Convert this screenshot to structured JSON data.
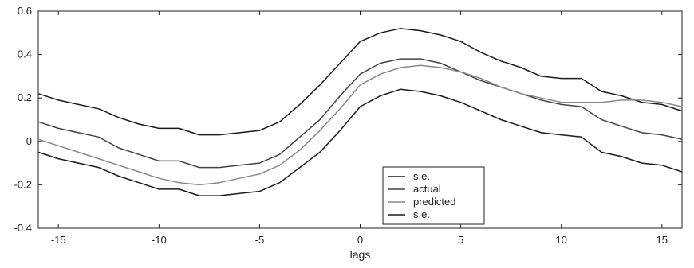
{
  "chart_data": {
    "type": "line",
    "xlabel": "lags",
    "ylabel": "",
    "xlim": [
      -16,
      16
    ],
    "ylim": [
      -0.4,
      0.6
    ],
    "xticks": [
      -15,
      -10,
      -5,
      0,
      5,
      10,
      15
    ],
    "yticks": [
      -0.4,
      -0.2,
      0,
      0.2,
      0.4,
      0.6
    ],
    "ytick_labels": [
      "-0.4",
      "-0.2",
      "0",
      "0.2",
      "0.4",
      "0.6"
    ],
    "grid": false,
    "legend": "bottom-center",
    "x": [
      -16,
      -15,
      -14,
      -13,
      -12,
      -11,
      -10,
      -9,
      -8,
      -7,
      -6,
      -5,
      -4,
      -3,
      -2,
      -1,
      0,
      1,
      2,
      3,
      4,
      5,
      6,
      7,
      8,
      9,
      10,
      11,
      12,
      13,
      14,
      15,
      16
    ],
    "series": [
      {
        "name": "s.e.",
        "color": "#1a1a1a",
        "values": [
          0.22,
          0.19,
          0.17,
          0.15,
          0.11,
          0.08,
          0.06,
          0.06,
          0.03,
          0.03,
          0.04,
          0.05,
          0.09,
          0.17,
          0.26,
          0.36,
          0.46,
          0.5,
          0.52,
          0.51,
          0.49,
          0.46,
          0.41,
          0.37,
          0.34,
          0.3,
          0.29,
          0.29,
          0.23,
          0.21,
          0.18,
          0.17,
          0.14
        ]
      },
      {
        "name": "actual",
        "color": "#444444",
        "values": [
          0.09,
          0.06,
          0.04,
          0.02,
          -0.03,
          -0.06,
          -0.09,
          -0.09,
          -0.12,
          -0.12,
          -0.11,
          -0.1,
          -0.06,
          0.02,
          0.1,
          0.21,
          0.31,
          0.36,
          0.38,
          0.38,
          0.36,
          0.32,
          0.28,
          0.25,
          0.22,
          0.19,
          0.17,
          0.16,
          0.1,
          0.07,
          0.04,
          0.03,
          0.01
        ]
      },
      {
        "name": "predicted",
        "color": "#888888",
        "values": [
          0.01,
          -0.02,
          -0.05,
          -0.08,
          -0.11,
          -0.14,
          -0.17,
          -0.19,
          -0.2,
          -0.19,
          -0.17,
          -0.15,
          -0.11,
          -0.04,
          0.05,
          0.15,
          0.26,
          0.31,
          0.34,
          0.35,
          0.34,
          0.32,
          0.29,
          0.25,
          0.22,
          0.2,
          0.18,
          0.18,
          0.18,
          0.19,
          0.19,
          0.18,
          0.16
        ]
      },
      {
        "name": "s.e.",
        "color": "#1a1a1a",
        "values": [
          -0.05,
          -0.08,
          -0.1,
          -0.12,
          -0.16,
          -0.19,
          -0.22,
          -0.22,
          -0.25,
          -0.25,
          -0.24,
          -0.23,
          -0.19,
          -0.12,
          -0.05,
          0.05,
          0.16,
          0.21,
          0.24,
          0.23,
          0.21,
          0.18,
          0.14,
          0.1,
          0.07,
          0.04,
          0.03,
          0.02,
          -0.05,
          -0.07,
          -0.1,
          -0.11,
          -0.14
        ]
      }
    ]
  }
}
